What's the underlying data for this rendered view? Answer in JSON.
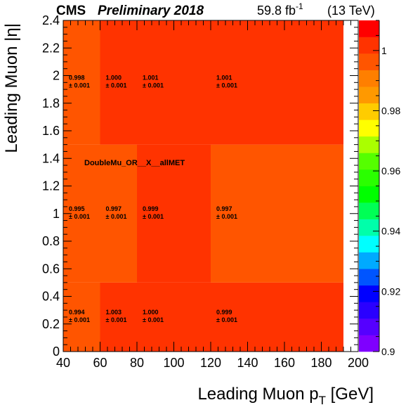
{
  "header": {
    "experiment": "CMS",
    "status": "Preliminary 2018",
    "lumi_value": "59.8 fb",
    "lumi_exponent": "-1",
    "energy": "(13 TeV)"
  },
  "chart_data": {
    "type": "heatmap",
    "xlabel": "Leading Muon p",
    "xlabel_sub": "T",
    "xlabel_unit": " [GeV]",
    "ylabel": "Leading Muon |η|",
    "x_edges": [
      40,
      60,
      80,
      120,
      192
    ],
    "x_range": [
      40,
      200
    ],
    "y_edges": [
      0,
      0.5,
      1.5,
      2.4
    ],
    "y_range": [
      0,
      2.4
    ],
    "x_ticks": [
      "40",
      "60",
      "80",
      "100",
      "120",
      "140",
      "160",
      "180",
      "200"
    ],
    "y_ticks": [
      "0",
      "0.2",
      "0.4",
      "0.6",
      "0.8",
      "1",
      "1.2",
      "1.4",
      "1.6",
      "1.8",
      "2",
      "2.2",
      "2.4"
    ],
    "values": [
      [
        0.994,
        1.003,
        1.0,
        0.999
      ],
      [
        0.995,
        0.997,
        0.999,
        0.997
      ],
      [
        0.998,
        1.0,
        1.001,
        1.001
      ]
    ],
    "value_labels": [
      [
        "0.994",
        "1.003",
        "1.000",
        "0.999"
      ],
      [
        "0.995",
        "0.997",
        "0.999",
        "0.997"
      ],
      [
        "0.998",
        "1.000",
        "1.001",
        "1.001"
      ]
    ],
    "error_labels": [
      [
        "± 0.001",
        "± 0.001",
        "± 0.001",
        "± 0.001"
      ],
      [
        "± 0.001",
        "± 0.001",
        "± 0.001",
        "± 0.001"
      ],
      [
        "± 0.001",
        "± 0.001",
        "± 0.001",
        "± 0.001"
      ]
    ],
    "annotation": "DoubleMu_OR__X__allMET",
    "z_range": [
      0.9,
      1.01
    ],
    "z_ticks": [
      "0.9",
      "0.92",
      "0.94",
      "0.96",
      "0.98",
      "1"
    ],
    "colormap": [
      "#7f00ff",
      "#5500ff",
      "#2a00ff",
      "#0000ff",
      "#0055ff",
      "#00aaff",
      "#00ffff",
      "#00ffaa",
      "#00ff55",
      "#00ff00",
      "#2aff00",
      "#55ff00",
      "#aaff00",
      "#ffff00",
      "#ffcc00",
      "#ff9900",
      "#ff7f00",
      "#ff5500",
      "#ff3300",
      "#ff0000"
    ],
    "grid": false
  }
}
